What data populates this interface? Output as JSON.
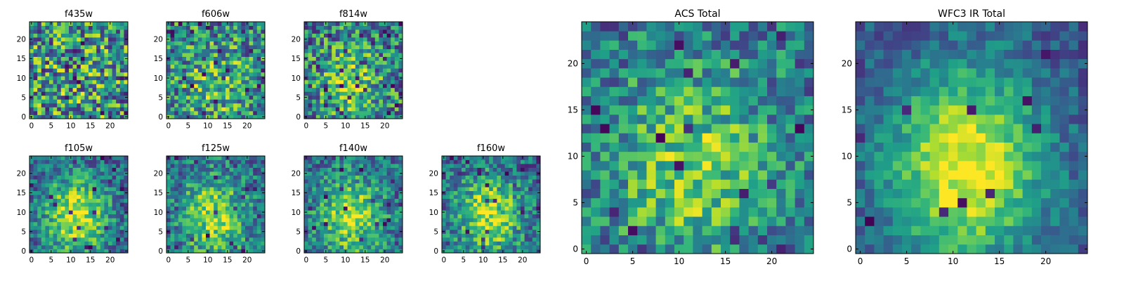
{
  "chart_data": [
    {
      "type": "heatmap",
      "title": "f435w",
      "grid_size": 25,
      "xlim": [
        0,
        24
      ],
      "ylim": [
        0,
        24
      ],
      "xticks": [
        0,
        5,
        10,
        15,
        20
      ],
      "yticks": [
        0,
        5,
        10,
        15,
        20
      ],
      "colormap": "viridis",
      "seed": 435,
      "center_strength": 0.05,
      "noise": 0.95,
      "dark_frac": 0.06
    },
    {
      "type": "heatmap",
      "title": "f606w",
      "grid_size": 25,
      "xlim": [
        0,
        24
      ],
      "ylim": [
        0,
        24
      ],
      "xticks": [
        0,
        5,
        10,
        15,
        20
      ],
      "yticks": [
        0,
        5,
        10,
        15,
        20
      ],
      "colormap": "viridis",
      "seed": 606,
      "center_strength": 0.25,
      "noise": 0.85,
      "dark_frac": 0.05
    },
    {
      "type": "heatmap",
      "title": "f814w",
      "grid_size": 25,
      "xlim": [
        0,
        24
      ],
      "ylim": [
        0,
        24
      ],
      "xticks": [
        0,
        5,
        10,
        15,
        20
      ],
      "yticks": [
        0,
        5,
        10,
        15,
        20
      ],
      "colormap": "viridis",
      "seed": 814,
      "center_strength": 0.3,
      "noise": 0.8,
      "dark_frac": 0.05
    },
    {
      "type": "heatmap",
      "title": "f105w",
      "grid_size": 25,
      "xlim": [
        0,
        24
      ],
      "ylim": [
        0,
        24
      ],
      "xticks": [
        0,
        5,
        10,
        15,
        20
      ],
      "yticks": [
        0,
        5,
        10,
        15,
        20
      ],
      "colormap": "viridis",
      "seed": 105,
      "center_strength": 0.6,
      "noise": 0.55,
      "dark_frac": 0.03
    },
    {
      "type": "heatmap",
      "title": "f125w",
      "grid_size": 25,
      "xlim": [
        0,
        24
      ],
      "ylim": [
        0,
        24
      ],
      "xticks": [
        0,
        5,
        10,
        15,
        20
      ],
      "yticks": [
        0,
        5,
        10,
        15,
        20
      ],
      "colormap": "viridis",
      "seed": 125,
      "center_strength": 0.5,
      "noise": 0.6,
      "dark_frac": 0.03
    },
    {
      "type": "heatmap",
      "title": "f140w",
      "grid_size": 25,
      "xlim": [
        0,
        24
      ],
      "ylim": [
        0,
        24
      ],
      "xticks": [
        0,
        5,
        10,
        15,
        20
      ],
      "yticks": [
        0,
        5,
        10,
        15,
        20
      ],
      "colormap": "viridis",
      "seed": 140,
      "center_strength": 0.5,
      "noise": 0.6,
      "dark_frac": 0.03
    },
    {
      "type": "heatmap",
      "title": "f160w",
      "grid_size": 25,
      "xlim": [
        0,
        24
      ],
      "ylim": [
        0,
        24
      ],
      "xticks": [
        0,
        5,
        10,
        15,
        20
      ],
      "yticks": [
        0,
        5,
        10,
        15,
        20
      ],
      "colormap": "viridis",
      "seed": 160,
      "center_strength": 0.55,
      "noise": 0.6,
      "dark_frac": 0.04
    },
    {
      "type": "heatmap",
      "title": "ACS Total",
      "grid_size": 25,
      "xlim": [
        0,
        24
      ],
      "ylim": [
        0,
        24
      ],
      "xticks": [
        0,
        5,
        10,
        15,
        20
      ],
      "yticks": [
        0,
        5,
        10,
        15,
        20
      ],
      "colormap": "viridis",
      "seed": 999,
      "center_strength": 0.4,
      "noise": 0.6,
      "dark_frac": 0.03
    },
    {
      "type": "heatmap",
      "title": "WFC3 IR Total",
      "grid_size": 25,
      "xlim": [
        0,
        24
      ],
      "ylim": [
        0,
        24
      ],
      "xticks": [
        0,
        5,
        10,
        15,
        20
      ],
      "yticks": [
        0,
        5,
        10,
        15,
        20
      ],
      "colormap": "viridis",
      "seed": 777,
      "center_strength": 0.75,
      "noise": 0.35,
      "dark_frac": 0.02
    }
  ]
}
